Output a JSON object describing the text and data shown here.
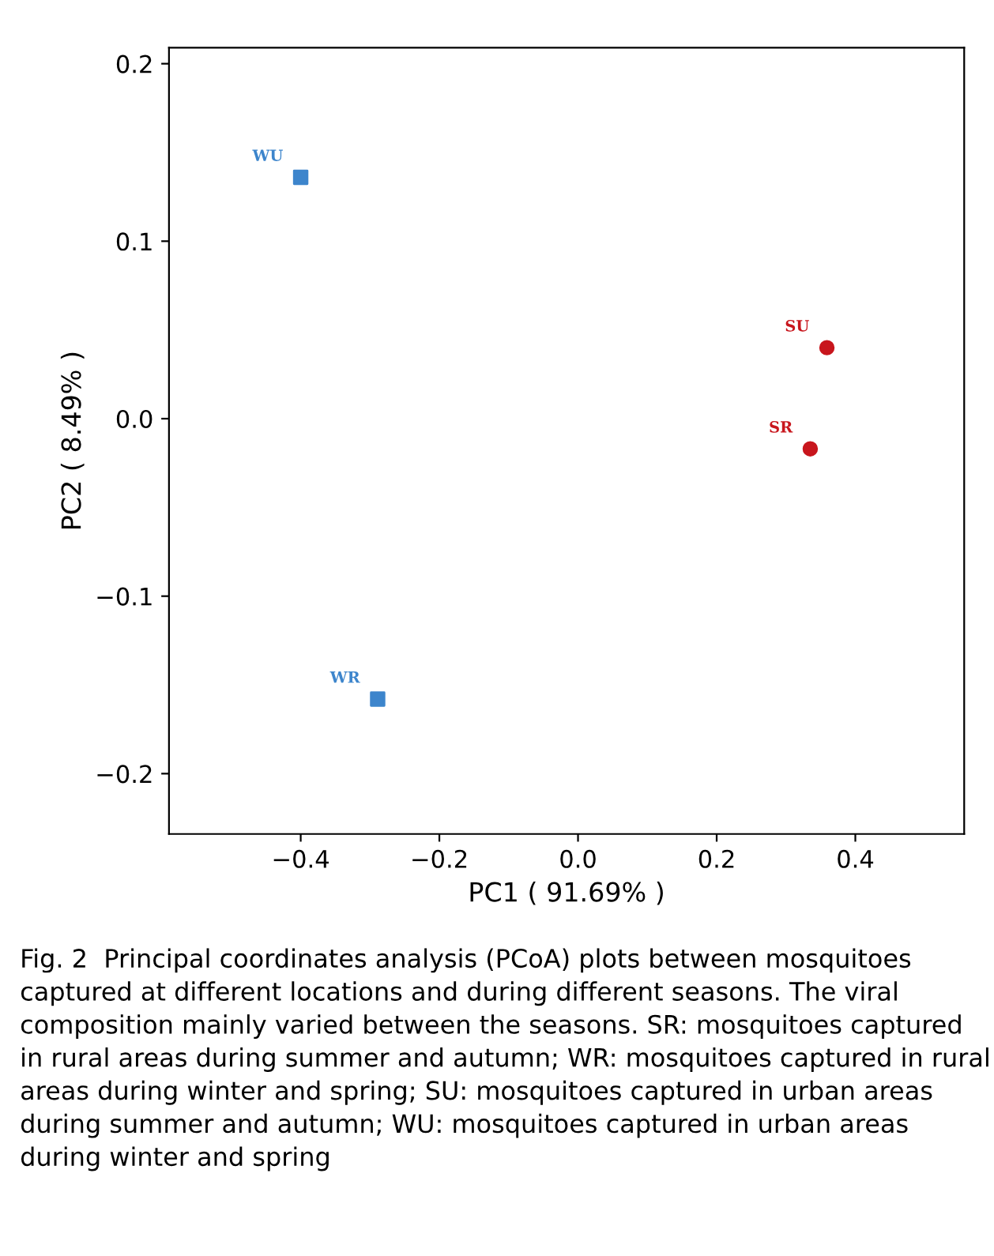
{
  "chart_data": {
    "type": "scatter",
    "xlabel": "PC1 ( 91.69% )",
    "ylabel": "PC2 ( 8.49% )",
    "xlim": [
      -0.59,
      0.557
    ],
    "ylim": [
      -0.234,
      0.209
    ],
    "xticks": [
      {
        "value": -0.4,
        "label": "−0.4"
      },
      {
        "value": -0.2,
        "label": "−0.2"
      },
      {
        "value": 0.0,
        "label": "0.0"
      },
      0.2,
      0.4
    ],
    "yticks": [
      {
        "value": -0.2,
        "label": "−0.2"
      },
      {
        "value": -0.1,
        "label": "−0.1"
      },
      {
        "value": 0.0,
        "label": "0.0"
      },
      0.1,
      0.2
    ],
    "grid": false,
    "series": [
      {
        "name": "WU",
        "color": "#3d85cc",
        "marker": "square",
        "x": [
          -0.4
        ],
        "values": [
          0.136
        ]
      },
      {
        "name": "WR",
        "color": "#3d85cc",
        "marker": "square",
        "x": [
          -0.289
        ],
        "values": [
          -0.158
        ]
      },
      {
        "name": "SU",
        "color": "#c8161d",
        "marker": "circle",
        "x": [
          0.359
        ],
        "values": [
          0.04
        ]
      },
      {
        "name": "SR",
        "color": "#c8161d",
        "marker": "circle",
        "x": [
          0.335
        ],
        "values": [
          -0.017
        ]
      }
    ],
    "annotations": [
      "Fig. 2  Principal coordinates analysis (PCoA) plots between mosquitoes captured at different locations and during different seasons. The viral composition mainly varied between the seasons. SR: mosquitoes captured in rural areas during summer and autumn; WR: mosquitoes captured in rural areas during winter and spring; SU: mosquitoes captured in urban areas during summer and autumn; WU: mosquitoes captured in urban areas during winter and spring"
    ]
  }
}
